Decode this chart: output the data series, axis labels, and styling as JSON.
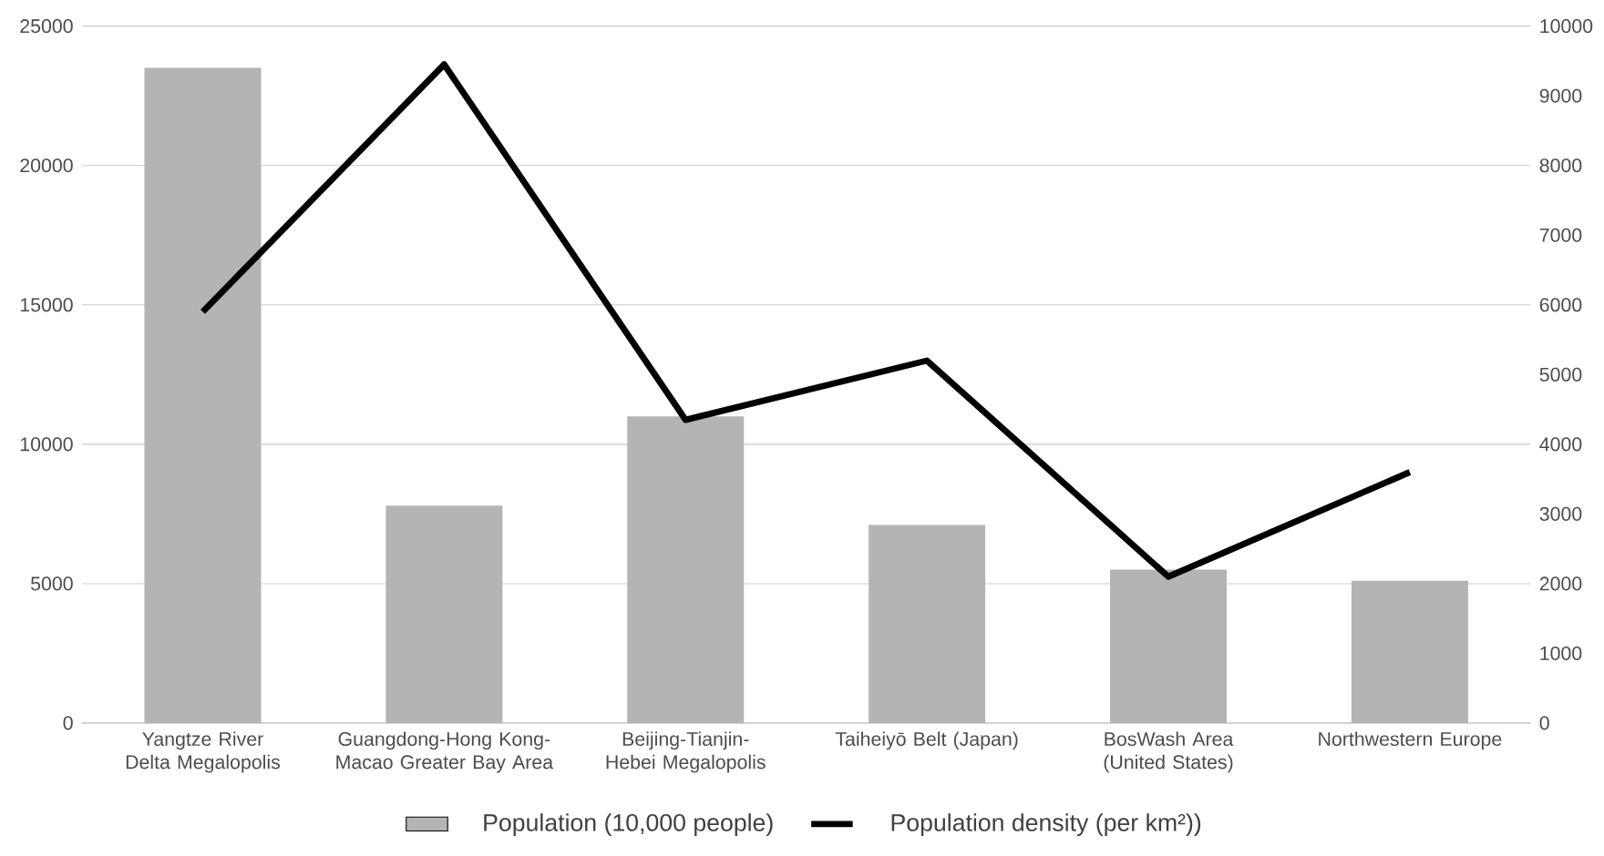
{
  "chart_data": {
    "type": "bar",
    "categories": [
      "Yangtze River Delta Megalopolis",
      "Guangdong-Hong Kong-Macao Greater Bay Area",
      "Beijing-Tianjin-Hebei Megalopolis",
      "Taiheiyō Belt (Japan)",
      "BosWash Area (United States)",
      "Northwestern Europe"
    ],
    "series": [
      {
        "name": "Population (10,000 people)",
        "color": "#b4b4b4",
        "values": [
          23500,
          7800,
          11000,
          7100,
          5500,
          5100
        ]
      },
      {
        "name": "Population density (per km²))",
        "type": "line",
        "axis": "y2",
        "color": "#000000",
        "values": [
          5900,
          9450,
          4350,
          5200,
          2100,
          3600
        ]
      }
    ],
    "ylim": [
      0,
      25000
    ],
    "yticks": [
      0,
      5000,
      10000,
      15000,
      20000,
      25000
    ],
    "y2lim": [
      0,
      10000
    ],
    "y2ticks": [
      0,
      1000,
      2000,
      3000,
      4000,
      5000,
      6000,
      7000,
      8000,
      9000,
      10000
    ],
    "grid": "y",
    "legend": "bottom",
    "marker": "none",
    "line_style": "solid"
  }
}
